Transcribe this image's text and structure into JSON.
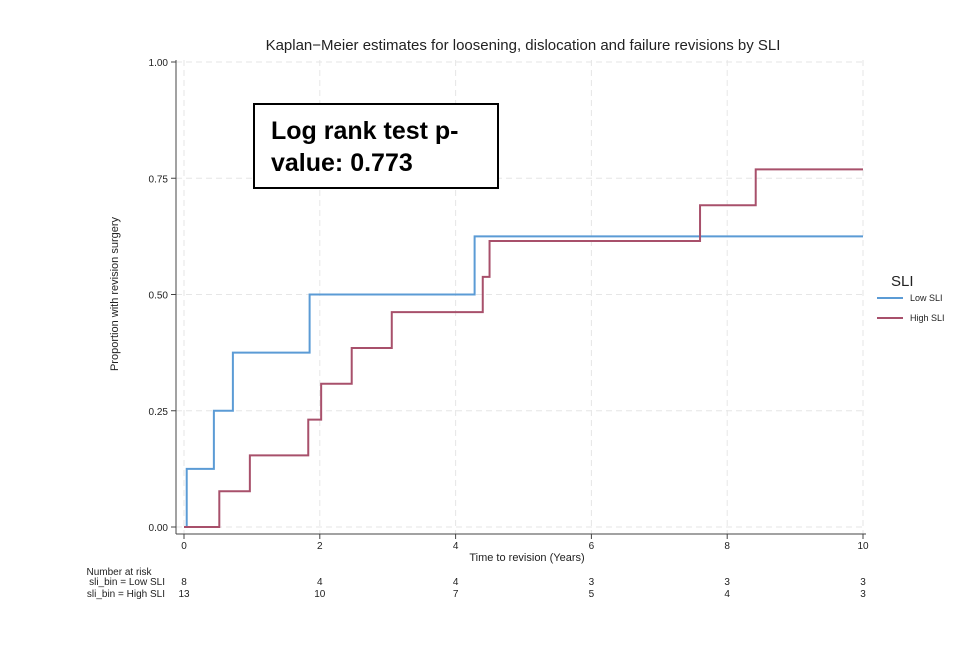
{
  "chart_data": {
    "type": "line",
    "title": "Kaplan−Meier estimates for loosening, dislocation and failure revisions by SLI",
    "xlabel": "Time to revision (Years)",
    "ylabel": "Proportion with revision surgery",
    "xlim": [
      0,
      10
    ],
    "ylim": [
      0,
      1
    ],
    "x_ticks": [
      "0",
      "2",
      "4",
      "6",
      "8",
      "10"
    ],
    "y_ticks": [
      "0.00",
      "0.25",
      "0.50",
      "0.75",
      "1.00"
    ],
    "grid": true,
    "legend": {
      "title": "SLI",
      "position": "right"
    },
    "series": [
      {
        "name": "Low SLI",
        "color": "#5b9bd5",
        "step": [
          [
            0,
            0
          ],
          [
            0.04,
            0.125
          ],
          [
            0.44,
            0.25
          ],
          [
            0.72,
            0.375
          ],
          [
            1.85,
            0.5
          ],
          [
            4.28,
            0.625
          ],
          [
            10,
            0.625
          ]
        ]
      },
      {
        "name": "High SLI",
        "color": "#a8506b",
        "step": [
          [
            0,
            0
          ],
          [
            0.52,
            0.077
          ],
          [
            0.97,
            0.154
          ],
          [
            1.83,
            0.231
          ],
          [
            2.02,
            0.308
          ],
          [
            2.47,
            0.385
          ],
          [
            3.06,
            0.462
          ],
          [
            4.4,
            0.538
          ],
          [
            4.5,
            0.615
          ],
          [
            7.6,
            0.692
          ],
          [
            8.42,
            0.769
          ],
          [
            10,
            0.769
          ]
        ]
      }
    ],
    "risk_table": {
      "header": "Number at risk",
      "x": [
        0,
        2,
        4,
        6,
        8,
        10
      ],
      "rows": [
        {
          "label": "sli_bin = Low SLI",
          "values": [
            "8",
            "4",
            "4",
            "3",
            "3",
            "3"
          ]
        },
        {
          "label": "sli_bin = High SLI",
          "values": [
            "13",
            "10",
            "7",
            "5",
            "4",
            "3"
          ]
        }
      ]
    }
  },
  "annotation": {
    "line1": "Log rank test p-",
    "line2": "value: 0.773"
  }
}
